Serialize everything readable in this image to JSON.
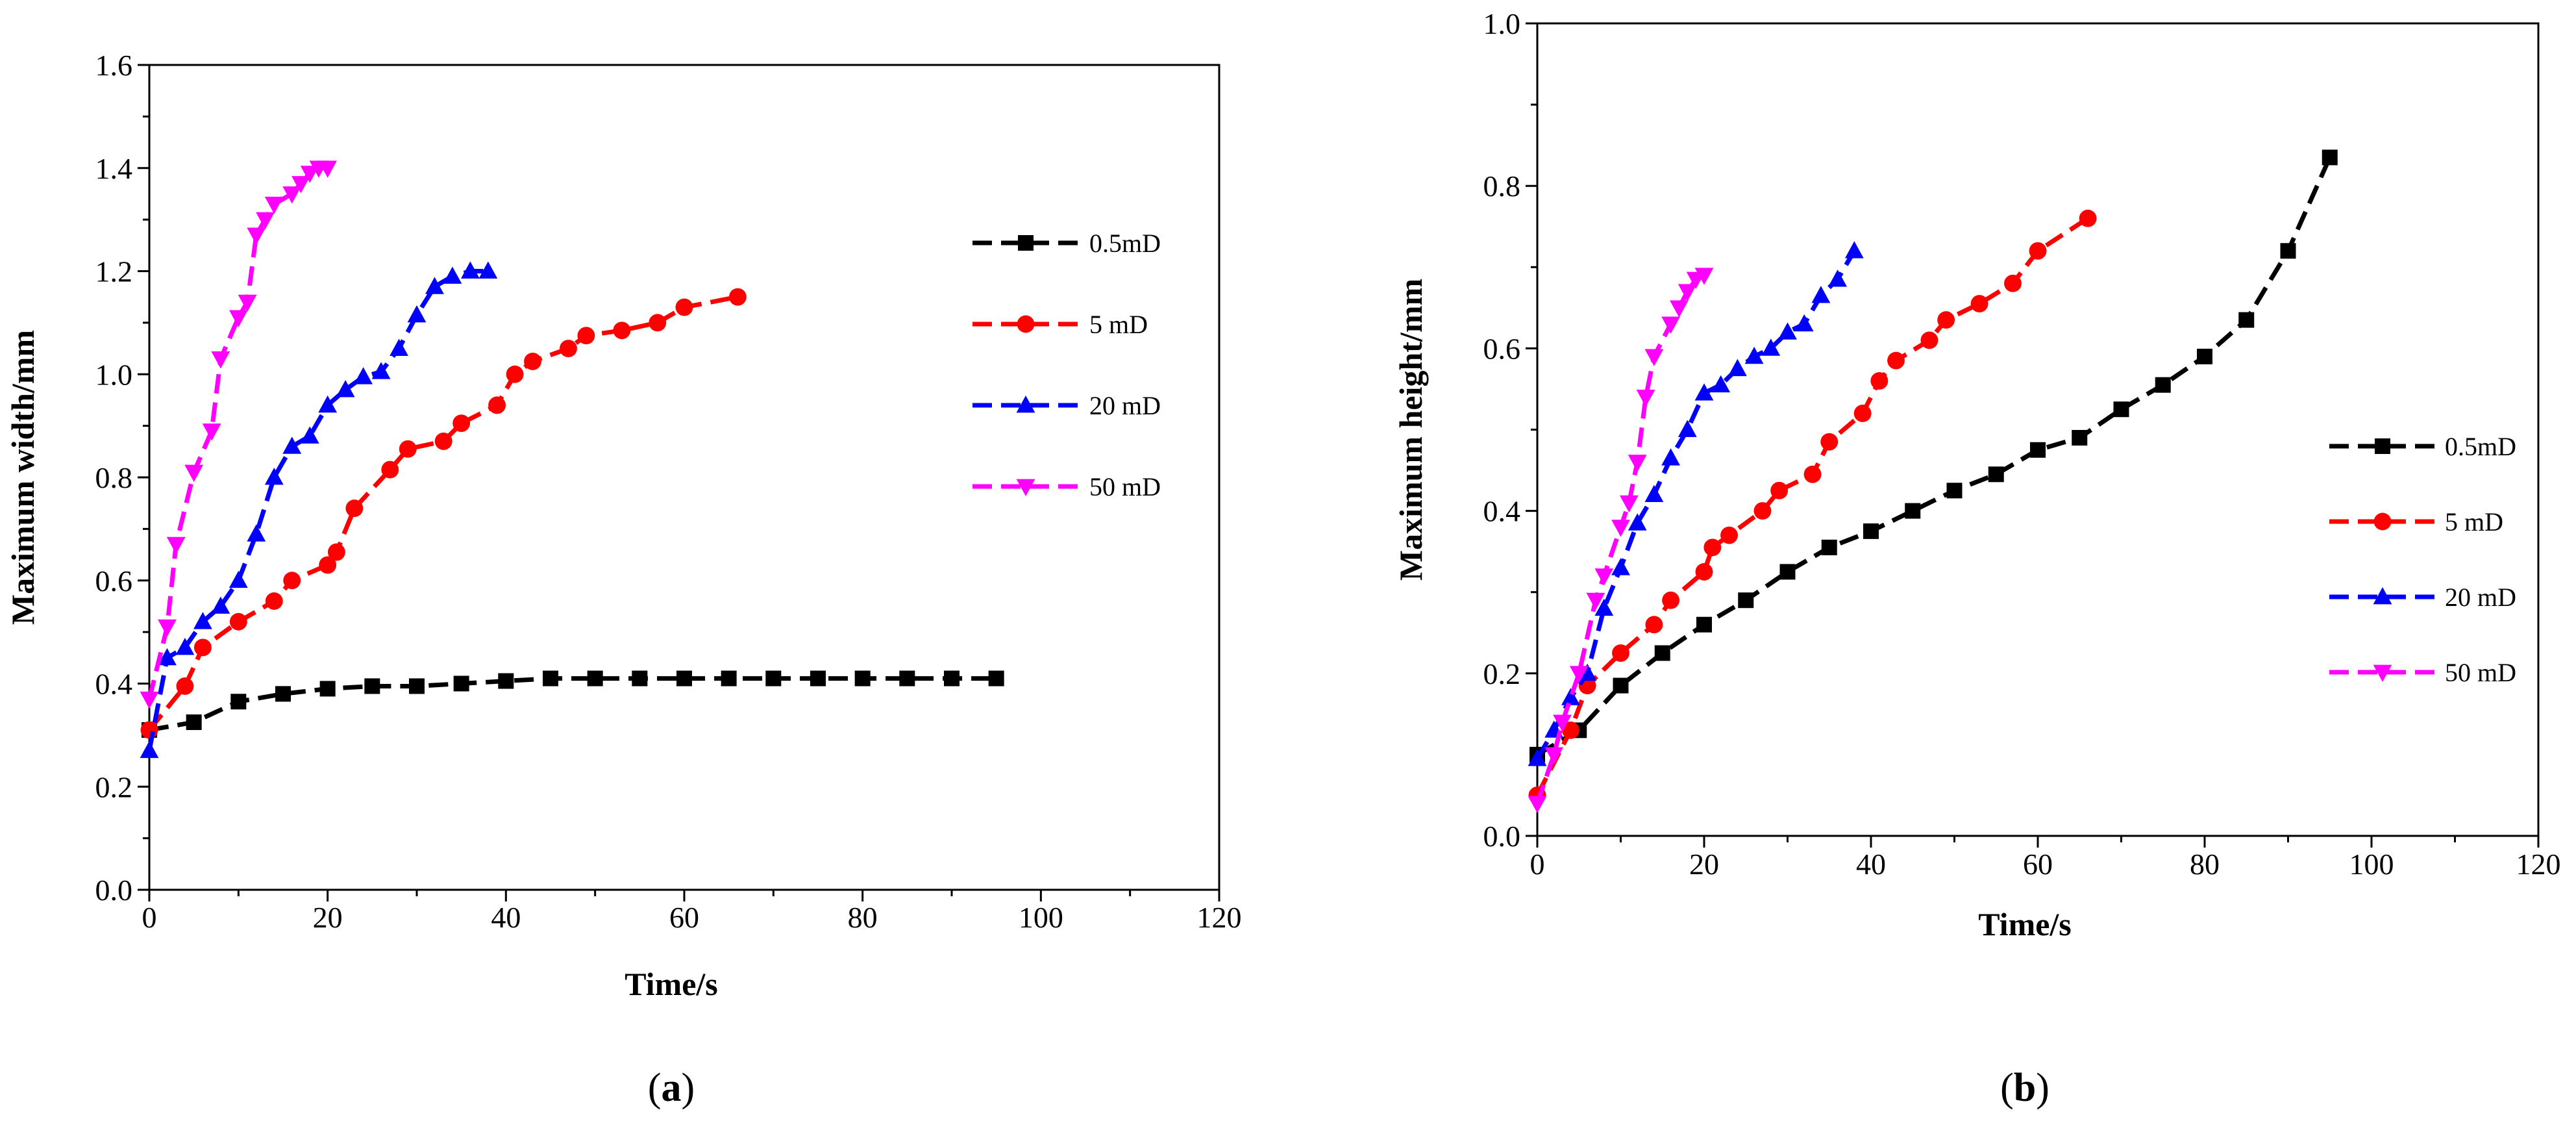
{
  "colors": {
    "black": "#000000",
    "red": "#ff0000",
    "blue": "#0000ff",
    "magenta": "#ff00ff"
  },
  "chart_data": [
    {
      "id": "a",
      "type": "line",
      "panel_label_parts": [
        "(",
        "a",
        ")"
      ],
      "xlabel": "Time/s",
      "ylabel": "Maximum width/mm",
      "xlim": [
        0,
        120
      ],
      "ylim": [
        0,
        1.6
      ],
      "xticks": [
        "0",
        "20",
        "40",
        "60",
        "80",
        "100",
        "120"
      ],
      "yticks": [
        "0.0",
        "0.2",
        "0.4",
        "0.6",
        "0.8",
        "1.0",
        "1.2",
        "1.4",
        "1.6"
      ],
      "grid": false,
      "legend_position": "right",
      "series": [
        {
          "name": "0.5mD",
          "color": "#000000",
          "marker": "square",
          "x": [
            0,
            5,
            10,
            15,
            20,
            25,
            30,
            35,
            40,
            45,
            50,
            55,
            60,
            65,
            70,
            75,
            80,
            85,
            90,
            95
          ],
          "y": [
            0.31,
            0.325,
            0.365,
            0.38,
            0.39,
            0.395,
            0.395,
            0.4,
            0.405,
            0.41,
            0.41,
            0.41,
            0.41,
            0.41,
            0.41,
            0.41,
            0.41,
            0.41,
            0.41,
            0.41
          ]
        },
        {
          "name": "5 mD",
          "color": "#ff0000",
          "marker": "circle",
          "x": [
            0,
            4,
            6,
            10,
            14,
            16,
            20,
            21,
            23,
            27,
            29,
            33,
            35,
            39,
            41,
            43,
            47,
            49,
            53,
            57,
            60,
            66
          ],
          "y": [
            0.31,
            0.395,
            0.47,
            0.52,
            0.56,
            0.6,
            0.63,
            0.655,
            0.74,
            0.815,
            0.855,
            0.87,
            0.905,
            0.94,
            1.0,
            1.025,
            1.05,
            1.075,
            1.085,
            1.1,
            1.13,
            1.15
          ]
        },
        {
          "name": "20 mD",
          "color": "#0000ff",
          "marker": "triangle-up",
          "x": [
            0,
            2,
            4,
            6,
            8,
            10,
            12,
            14,
            16,
            18,
            20,
            22,
            24,
            26,
            28,
            30,
            32,
            34,
            36,
            38
          ],
          "y": [
            0.27,
            0.45,
            0.47,
            0.52,
            0.55,
            0.6,
            0.69,
            0.8,
            0.86,
            0.88,
            0.94,
            0.97,
            0.995,
            1.005,
            1.05,
            1.115,
            1.17,
            1.19,
            1.2,
            1.2
          ]
        },
        {
          "name": "50 mD",
          "color": "#ff00ff",
          "marker": "triangle-down",
          "x": [
            0,
            2,
            3,
            5,
            7,
            8,
            10,
            11,
            12,
            13,
            14,
            16,
            17,
            18,
            19,
            20
          ],
          "y": [
            0.37,
            0.51,
            0.67,
            0.81,
            0.89,
            1.03,
            1.11,
            1.14,
            1.27,
            1.3,
            1.33,
            1.35,
            1.37,
            1.39,
            1.4,
            1.4
          ]
        }
      ]
    },
    {
      "id": "b",
      "type": "line",
      "panel_label_parts": [
        "(",
        "b",
        ")"
      ],
      "xlabel": "Time/s",
      "ylabel": "Maximum height/mm",
      "xlim": [
        0,
        120
      ],
      "ylim": [
        0,
        1.0
      ],
      "xticks": [
        "0",
        "20",
        "40",
        "60",
        "80",
        "100",
        "120"
      ],
      "yticks": [
        "0.0",
        "0.2",
        "0.4",
        "0.6",
        "0.8",
        "1.0"
      ],
      "grid": false,
      "legend_position": "right",
      "series": [
        {
          "name": "0.5mD",
          "color": "#000000",
          "marker": "square",
          "x": [
            0,
            5,
            10,
            15,
            20,
            25,
            30,
            35,
            40,
            45,
            50,
            55,
            60,
            65,
            70,
            75,
            80,
            85,
            90,
            95
          ],
          "y": [
            0.1,
            0.13,
            0.185,
            0.225,
            0.26,
            0.29,
            0.325,
            0.355,
            0.375,
            0.4,
            0.425,
            0.445,
            0.475,
            0.49,
            0.525,
            0.555,
            0.59,
            0.635,
            0.72,
            0.835
          ]
        },
        {
          "name": "5 mD",
          "color": "#ff0000",
          "marker": "circle",
          "x": [
            0,
            4,
            6,
            10,
            14,
            16,
            20,
            21,
            23,
            27,
            29,
            33,
            35,
            39,
            41,
            43,
            47,
            49,
            53,
            57,
            60,
            66
          ],
          "y": [
            0.05,
            0.13,
            0.185,
            0.225,
            0.26,
            0.29,
            0.325,
            0.355,
            0.37,
            0.4,
            0.425,
            0.445,
            0.485,
            0.52,
            0.56,
            0.585,
            0.61,
            0.635,
            0.655,
            0.68,
            0.72,
            0.76
          ]
        },
        {
          "name": "20 mD",
          "color": "#0000ff",
          "marker": "triangle-up",
          "x": [
            0,
            2,
            4,
            6,
            8,
            10,
            12,
            14,
            16,
            18,
            20,
            22,
            24,
            26,
            28,
            30,
            32,
            34,
            36,
            38
          ],
          "y": [
            0.095,
            0.13,
            0.17,
            0.2,
            0.28,
            0.33,
            0.385,
            0.42,
            0.465,
            0.5,
            0.545,
            0.555,
            0.575,
            0.59,
            0.6,
            0.62,
            0.63,
            0.665,
            0.685,
            0.72
          ]
        },
        {
          "name": "50 mD",
          "color": "#ff00ff",
          "marker": "triangle-down",
          "x": [
            0,
            2,
            3,
            5,
            7,
            8,
            10,
            11,
            12,
            13,
            14,
            16,
            17,
            18,
            19,
            20
          ],
          "y": [
            0.04,
            0.1,
            0.14,
            0.2,
            0.29,
            0.32,
            0.38,
            0.41,
            0.46,
            0.54,
            0.59,
            0.63,
            0.65,
            0.67,
            0.685,
            0.69
          ]
        }
      ]
    }
  ]
}
